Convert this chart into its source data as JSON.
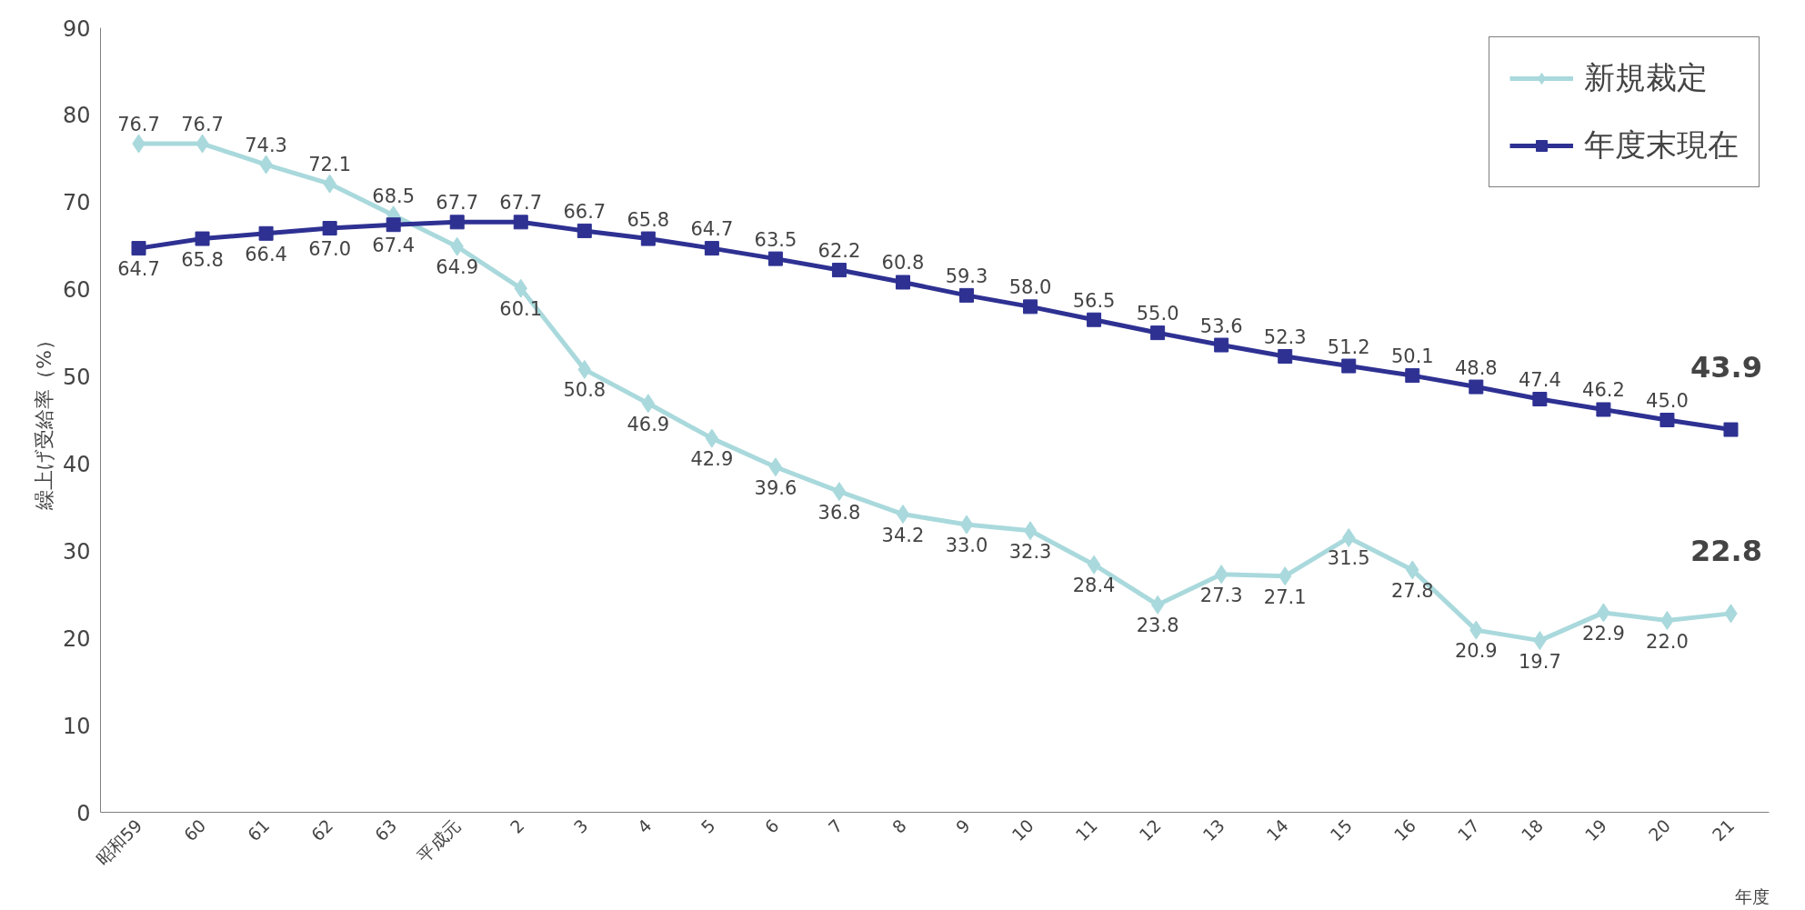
{
  "chart_data": {
    "type": "line",
    "xlabel": "年度",
    "ylabel": "繰上げ受給率（%）",
    "categories": [
      "昭和59",
      "60",
      "61",
      "62",
      "63",
      "平成元",
      "2",
      "3",
      "4",
      "5",
      "6",
      "7",
      "8",
      "9",
      "10",
      "11",
      "12",
      "13",
      "14",
      "15",
      "16",
      "17",
      "18",
      "19",
      "20",
      "21"
    ],
    "series": [
      {
        "name": "新規裁定",
        "color": "#a9d9dc",
        "marker": "diamond",
        "values": [
          76.7,
          76.7,
          74.3,
          72.1,
          68.5,
          64.9,
          60.1,
          50.8,
          46.9,
          42.9,
          39.6,
          36.8,
          34.2,
          33.0,
          32.3,
          28.4,
          23.8,
          27.3,
          27.1,
          31.5,
          27.8,
          20.9,
          19.7,
          22.9,
          22.0,
          22.8
        ],
        "value_labels": [
          "76.7",
          "76.7",
          "74.3",
          "72.1",
          "68.5",
          "64.9",
          "60.1",
          "50.8",
          "46.9",
          "42.9",
          "39.6",
          "36.8",
          "34.2",
          "33.0",
          "32.3",
          "28.4",
          "23.8",
          "27.3",
          "27.1",
          "31.5",
          "27.8",
          "20.9",
          "19.7",
          "22.9",
          "22.0",
          "22.8"
        ]
      },
      {
        "name": "年度末現在",
        "color": "#2e3192",
        "marker": "square",
        "values": [
          64.7,
          65.8,
          66.4,
          67.0,
          67.4,
          67.7,
          67.7,
          66.7,
          65.8,
          64.7,
          63.5,
          62.2,
          60.8,
          59.3,
          58.0,
          56.5,
          55.0,
          53.6,
          52.3,
          51.2,
          50.1,
          48.8,
          47.4,
          46.2,
          45.0,
          43.9
        ],
        "value_labels": [
          "64.7",
          "65.8",
          "66.4",
          "67.0",
          "67.4",
          "67.7",
          "67.7",
          "66.7",
          "65.8",
          "64.7",
          "63.5",
          "62.2",
          "60.8",
          "59.3",
          "58.0",
          "56.5",
          "55.0",
          "53.6",
          "52.3",
          "51.2",
          "50.1",
          "48.8",
          "47.4",
          "46.2",
          "45.0",
          "43.9"
        ]
      }
    ],
    "ylim": [
      0,
      90
    ],
    "yticks": [
      0,
      10,
      20,
      30,
      40,
      50,
      60,
      70,
      80,
      90
    ],
    "data_labels": true,
    "grid": false,
    "legend": "top right",
    "line_style": "solid"
  }
}
